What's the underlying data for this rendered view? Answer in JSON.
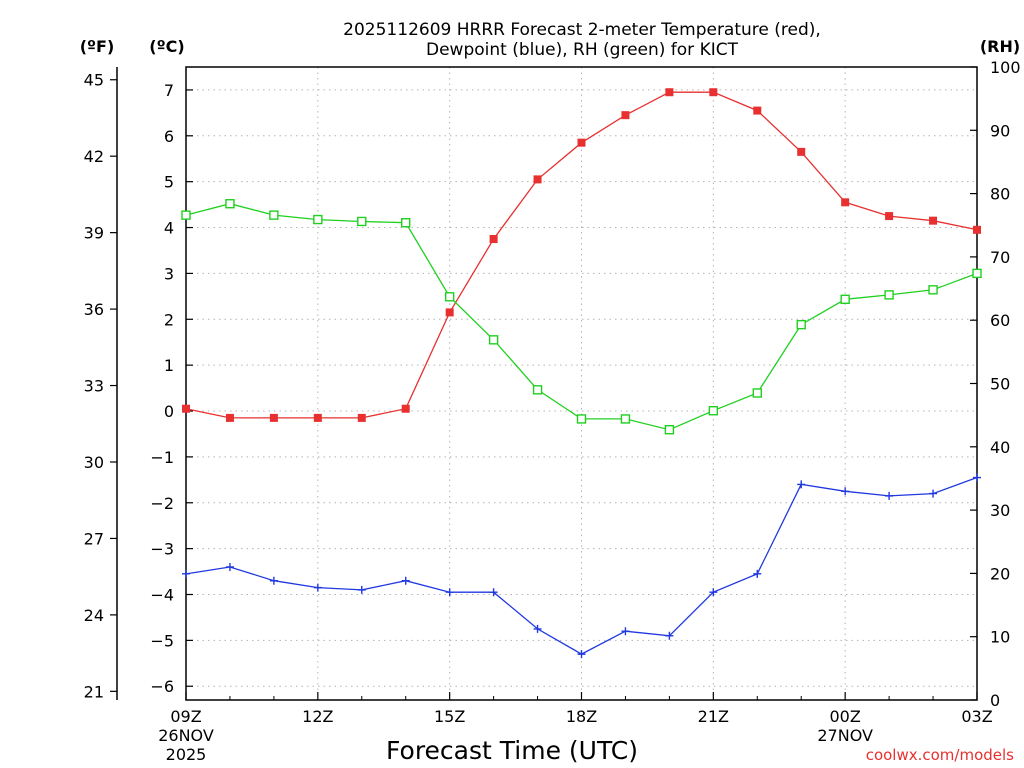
{
  "chart_data": {
    "type": "line",
    "title_line1": "2025112609 HRRR Forecast 2-meter Temperature (red),",
    "title_line2": "Dewpoint (blue), RH (green) for KICT",
    "xlabel": "Forecast Time (UTC)",
    "credit": "coolwx.com/models",
    "unit_labels": {
      "fahrenheit": "(ºF)",
      "celsius": "(ºC)",
      "rh": "(RH)"
    },
    "x_hours": [
      0,
      1,
      2,
      3,
      4,
      5,
      6,
      7,
      8,
      9,
      10,
      11,
      12,
      13,
      14,
      15,
      16,
      17,
      18
    ],
    "xlim": [
      0,
      18
    ],
    "x_ticks": [
      {
        "hour": 0,
        "label": "09Z",
        "date": "26NOV",
        "year": "2025"
      },
      {
        "hour": 3,
        "label": "12Z",
        "date": "",
        "year": ""
      },
      {
        "hour": 6,
        "label": "15Z",
        "date": "",
        "year": ""
      },
      {
        "hour": 9,
        "label": "18Z",
        "date": "",
        "year": ""
      },
      {
        "hour": 12,
        "label": "21Z",
        "date": "",
        "year": ""
      },
      {
        "hour": 15,
        "label": "00Z",
        "date": "27NOV",
        "year": ""
      },
      {
        "hour": 18,
        "label": "03Z",
        "date": "",
        "year": ""
      }
    ],
    "celsius_axis": {
      "ylim": [
        -6.3,
        7.5
      ],
      "ticks": [
        -6,
        -5,
        -4,
        -3,
        -2,
        -1,
        0,
        1,
        2,
        3,
        4,
        5,
        6,
        7
      ]
    },
    "fahrenheit_axis": {
      "ticks": [
        21,
        24,
        27,
        30,
        33,
        36,
        39,
        42,
        45
      ]
    },
    "rh_axis": {
      "ylim": [
        0,
        100
      ],
      "ticks": [
        0,
        10,
        20,
        30,
        40,
        50,
        60,
        70,
        80,
        90,
        100
      ]
    },
    "series": [
      {
        "name": "Temperature",
        "units": "C",
        "axis": "celsius",
        "color": "#e83030",
        "marker": "filled-square",
        "values": [
          0.05,
          -0.15,
          -0.15,
          -0.15,
          -0.15,
          0.05,
          2.15,
          3.75,
          5.05,
          5.85,
          6.45,
          6.95,
          6.95,
          6.55,
          5.65,
          4.55,
          4.25,
          4.15,
          3.95
        ]
      },
      {
        "name": "Dewpoint",
        "units": "C",
        "axis": "celsius",
        "color": "#2038e0",
        "marker": "plus",
        "values": [
          -3.55,
          -3.4,
          -3.7,
          -3.85,
          -3.9,
          -3.7,
          -3.95,
          -3.95,
          -4.75,
          -5.3,
          -4.8,
          -4.9,
          -3.95,
          -3.55,
          -1.6,
          -1.75,
          -1.85,
          -1.8,
          -1.45
        ]
      },
      {
        "name": "Relative Humidity",
        "units": "%",
        "axis": "rh",
        "color": "#20d020",
        "marker": "open-square",
        "values": [
          76.6,
          78.4,
          76.6,
          75.9,
          75.6,
          75.4,
          63.7,
          56.9,
          49.0,
          44.4,
          44.4,
          42.7,
          45.7,
          48.5,
          59.3,
          63.3,
          64.0,
          64.8,
          67.4
        ]
      }
    ]
  }
}
